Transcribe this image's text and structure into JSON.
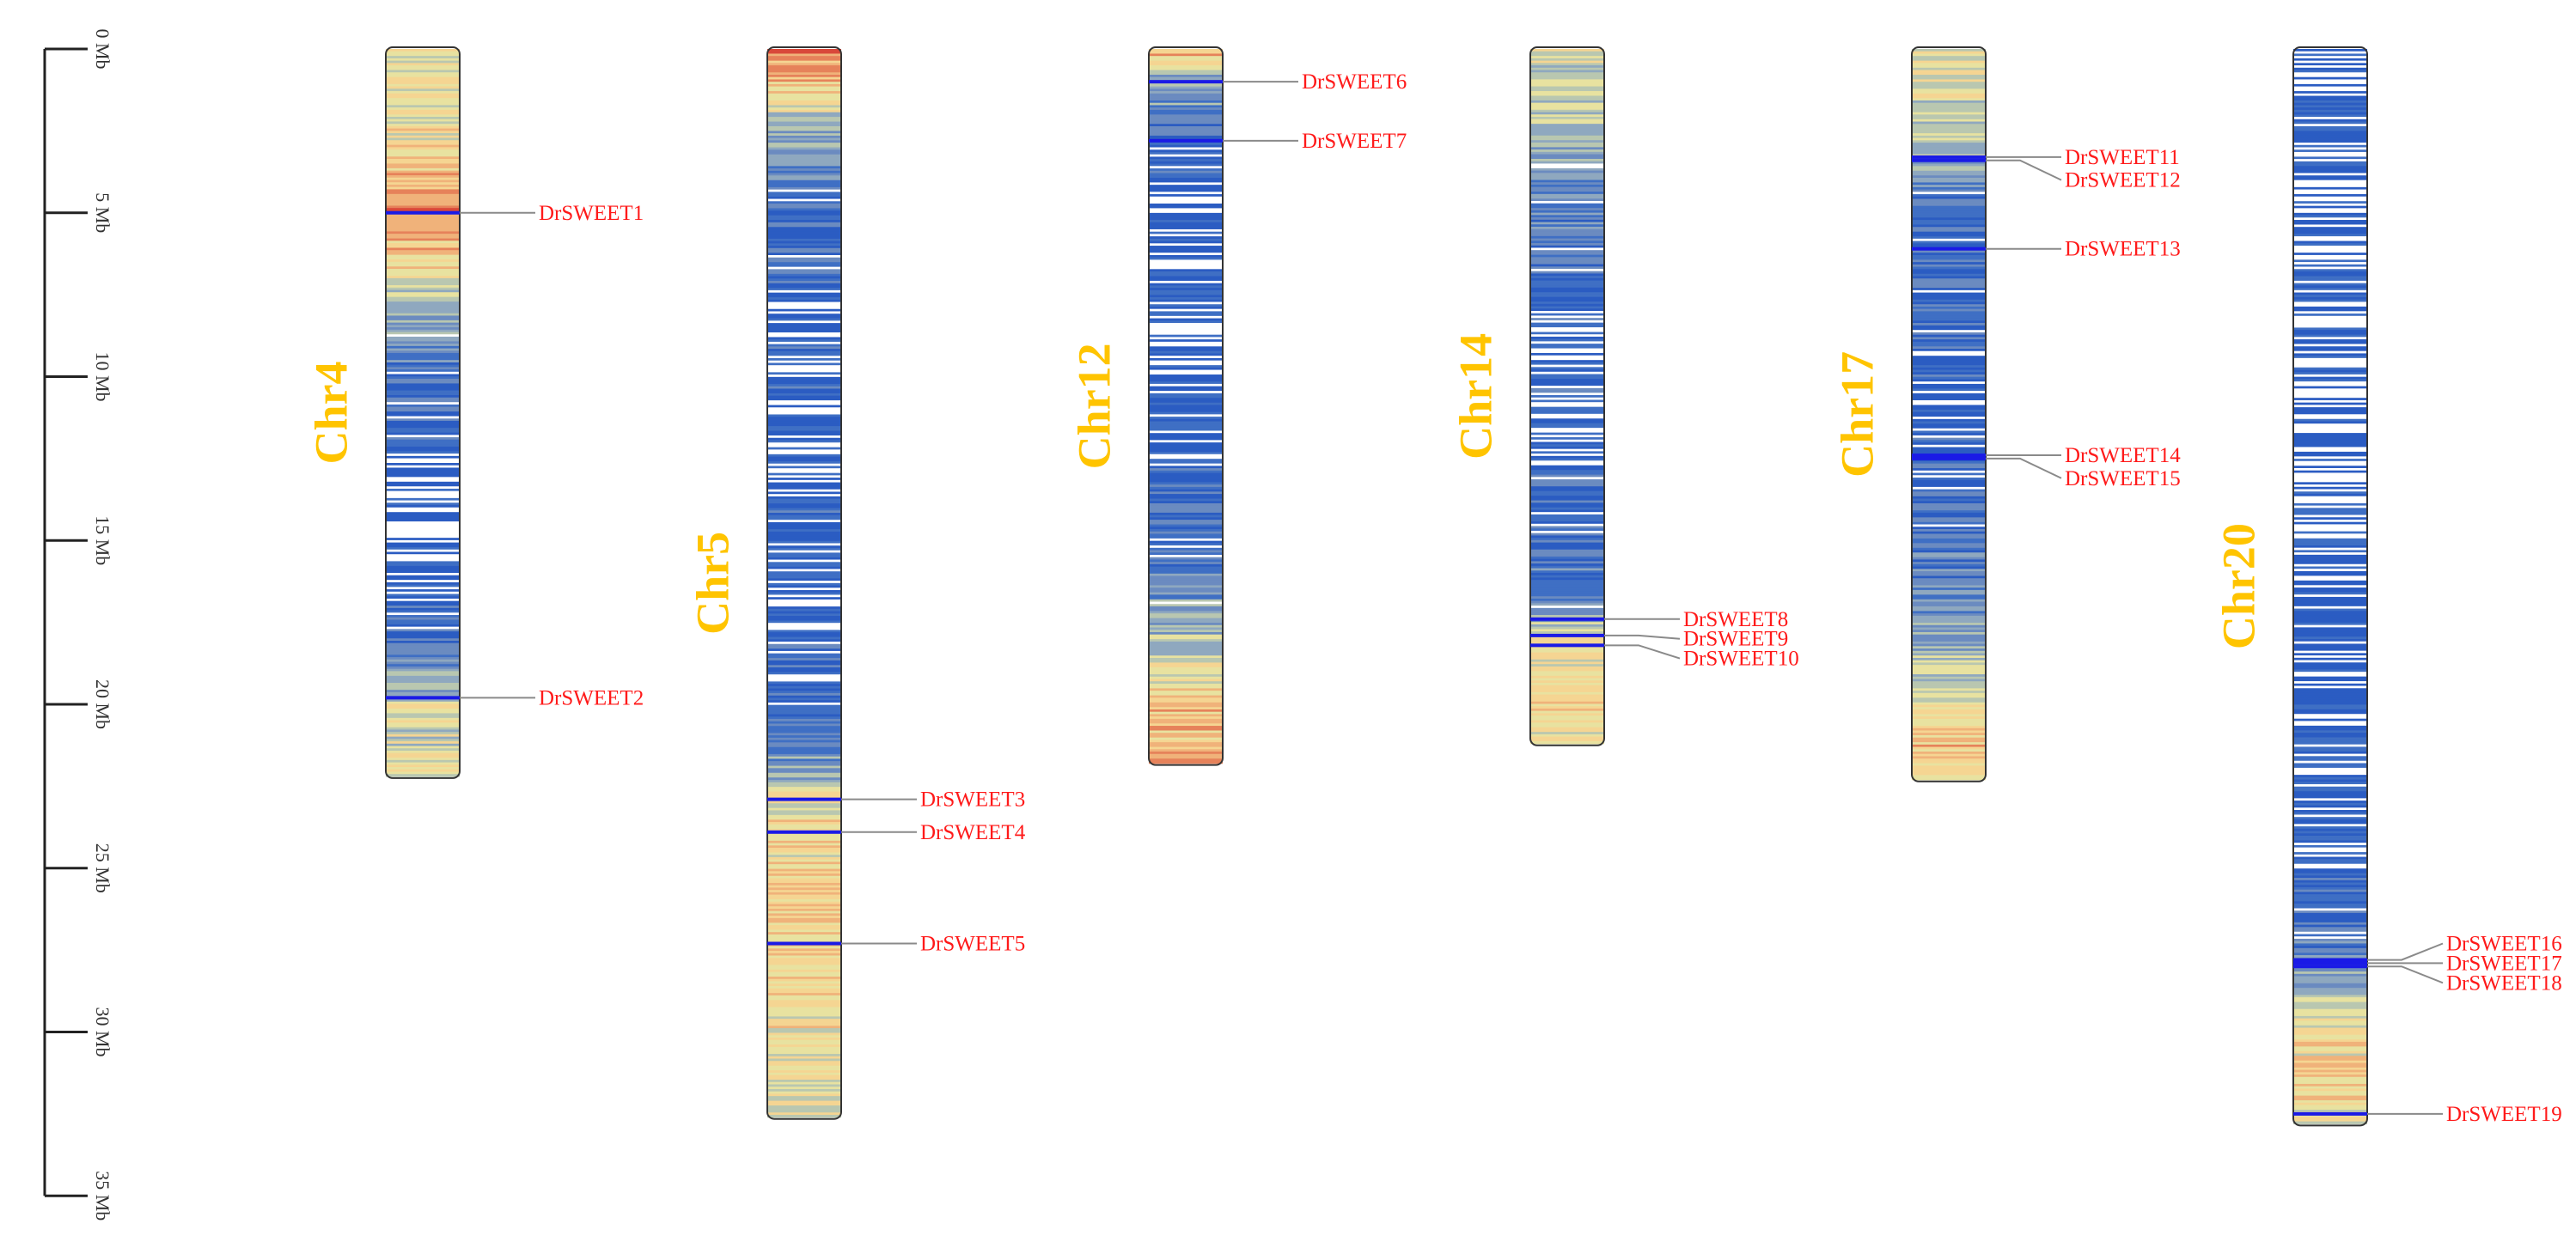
{
  "scale": {
    "unit": "Mb",
    "ticks": [
      "0 Mb",
      "5 Mb",
      "10 Mb",
      "15 Mb",
      "20 Mb",
      "25 Mb",
      "30 Mb",
      "35 Mb"
    ],
    "tick_values": [
      0,
      5,
      10,
      15,
      20,
      25,
      30,
      35
    ]
  },
  "colors": {
    "title": "#ffc400",
    "gene_label": "#ff1a1a",
    "leader_line": "#8a8a8a",
    "gene_marker": "#1a1ae6",
    "density_scale": [
      "#ffffff",
      "#2b5cc2",
      "#3f6fc4",
      "#6b8bc0",
      "#8fa8bf",
      "#b9c7b0",
      "#e8e2a0",
      "#f5d592",
      "#f0b27a",
      "#e6825a",
      "#d9483a"
    ]
  },
  "chromosomes": [
    {
      "name": "Chr4",
      "length_mb": 22.2,
      "profile": [
        [
          0,
          0.58
        ],
        [
          3,
          0.65
        ],
        [
          5,
          0.9
        ],
        [
          7,
          0.6
        ],
        [
          9,
          0.3
        ],
        [
          12,
          0.14
        ],
        [
          16,
          0.06
        ],
        [
          18,
          0.2
        ],
        [
          20,
          0.55
        ],
        [
          22.2,
          0.55
        ]
      ],
      "genes": [
        {
          "label": "DrSWEET1",
          "pos_mb": 5.0,
          "label_mb": 5.0
        },
        {
          "label": "DrSWEET2",
          "pos_mb": 19.8,
          "label_mb": 19.8
        }
      ]
    },
    {
      "name": "Chr5",
      "length_mb": 32.6,
      "profile": [
        [
          0,
          0.85
        ],
        [
          1,
          0.75
        ],
        [
          3,
          0.35
        ],
        [
          5,
          0.15
        ],
        [
          10,
          0.12
        ],
        [
          15,
          0.12
        ],
        [
          20,
          0.15
        ],
        [
          22,
          0.4
        ],
        [
          23,
          0.6
        ],
        [
          26,
          0.72
        ],
        [
          29,
          0.65
        ],
        [
          32.6,
          0.58
        ]
      ],
      "genes": [
        {
          "label": "DrSWEET3",
          "pos_mb": 22.9,
          "label_mb": 22.9
        },
        {
          "label": "DrSWEET4",
          "pos_mb": 23.9,
          "label_mb": 23.9
        },
        {
          "label": "DrSWEET5",
          "pos_mb": 27.3,
          "label_mb": 27.3
        }
      ]
    },
    {
      "name": "Chr12",
      "length_mb": 21.8,
      "profile": [
        [
          0,
          0.85
        ],
        [
          1,
          0.4
        ],
        [
          3,
          0.15
        ],
        [
          8,
          0.08
        ],
        [
          12,
          0.1
        ],
        [
          16,
          0.3
        ],
        [
          18,
          0.5
        ],
        [
          20,
          0.7
        ],
        [
          21.8,
          0.85
        ]
      ],
      "genes": [
        {
          "label": "DrSWEET6",
          "pos_mb": 1.0,
          "label_mb": 1.0
        },
        {
          "label": "DrSWEET7",
          "pos_mb": 2.8,
          "label_mb": 2.8
        }
      ]
    },
    {
      "name": "Chr14",
      "length_mb": 21.2,
      "profile": [
        [
          0,
          0.6
        ],
        [
          2,
          0.5
        ],
        [
          4,
          0.3
        ],
        [
          8,
          0.12
        ],
        [
          14,
          0.15
        ],
        [
          17,
          0.3
        ],
        [
          18,
          0.6
        ],
        [
          20,
          0.72
        ],
        [
          21.2,
          0.6
        ]
      ],
      "genes": [
        {
          "label": "DrSWEET8",
          "pos_mb": 17.4,
          "label_mb": 17.4
        },
        {
          "label": "DrSWEET9",
          "pos_mb": 17.9,
          "label_mb": 18.0
        },
        {
          "label": "DrSWEET10",
          "pos_mb": 18.2,
          "label_mb": 18.6
        }
      ]
    },
    {
      "name": "Chr17",
      "length_mb": 22.3,
      "profile": [
        [
          0,
          0.62
        ],
        [
          2,
          0.55
        ],
        [
          3.5,
          0.4
        ],
        [
          5,
          0.2
        ],
        [
          12,
          0.15
        ],
        [
          16,
          0.25
        ],
        [
          19,
          0.5
        ],
        [
          21,
          0.75
        ],
        [
          22.3,
          0.65
        ]
      ],
      "genes": [
        {
          "label": "DrSWEET11",
          "pos_mb": 3.3,
          "label_mb": 3.3
        },
        {
          "label": "DrSWEET12",
          "pos_mb": 3.4,
          "label_mb": 4.0
        },
        {
          "label": "DrSWEET13",
          "pos_mb": 6.1,
          "label_mb": 6.1
        },
        {
          "label": "DrSWEET14",
          "pos_mb": 12.4,
          "label_mb": 12.4
        },
        {
          "label": "DrSWEET15",
          "pos_mb": 12.5,
          "label_mb": 13.1
        }
      ]
    },
    {
      "name": "Chr20",
      "length_mb": 32.8,
      "profile": [
        [
          0,
          0.08
        ],
        [
          10,
          0.05
        ],
        [
          20,
          0.08
        ],
        [
          24,
          0.12
        ],
        [
          27,
          0.2
        ],
        [
          28.5,
          0.4
        ],
        [
          30,
          0.6
        ],
        [
          31.5,
          0.72
        ],
        [
          32.8,
          0.6
        ]
      ],
      "genes": [
        {
          "label": "DrSWEET16",
          "pos_mb": 27.8,
          "label_mb": 27.3
        },
        {
          "label": "DrSWEET17",
          "pos_mb": 27.9,
          "label_mb": 27.9
        },
        {
          "label": "DrSWEET18",
          "pos_mb": 28.0,
          "label_mb": 28.5
        },
        {
          "label": "DrSWEET19",
          "pos_mb": 32.5,
          "label_mb": 32.5
        }
      ]
    }
  ]
}
